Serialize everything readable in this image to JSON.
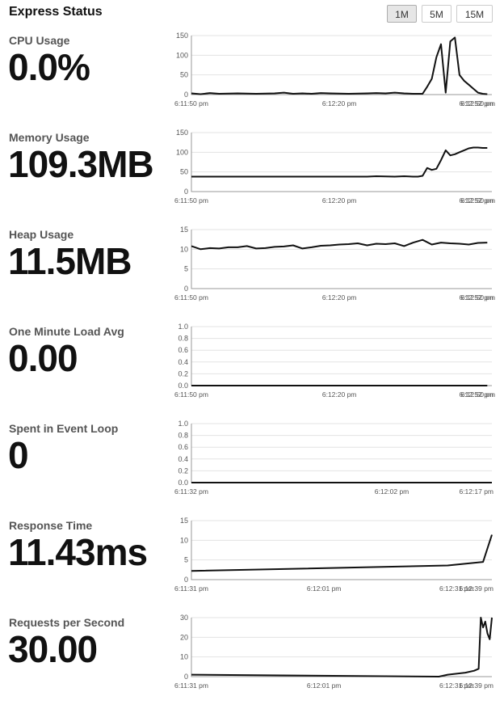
{
  "header": {
    "title": "Express Status",
    "buttons": [
      {
        "label": "1M",
        "active": true
      },
      {
        "label": "5M",
        "active": false
      },
      {
        "label": "15M",
        "active": false
      }
    ]
  },
  "colors": {
    "line": "#111111",
    "grid": "#e3e3e3",
    "axis": "#555555",
    "button_active": "#e6e6e6"
  },
  "chart_data": [
    {
      "type": "line",
      "label": "CPU Usage",
      "value_display": "0.0%",
      "ylim": [
        0,
        150
      ],
      "yticks": [
        0,
        50,
        100,
        150
      ],
      "grid": true,
      "xticks": [
        "6:11:50 pm",
        "6:12:20 pm",
        "6:12:50 pm",
        "6:12:52 pm"
      ],
      "xrange": [
        0,
        65
      ],
      "series": [
        {
          "x": [
            0,
            2,
            4,
            6,
            10,
            14,
            18,
            20,
            22,
            24,
            26,
            28,
            30,
            34,
            38,
            40,
            42,
            44,
            46,
            48,
            50,
            51,
            52,
            53,
            54,
            55,
            56,
            57,
            58,
            59,
            60,
            61,
            62,
            63,
            64
          ],
          "y": [
            3,
            1,
            4,
            2,
            3,
            2,
            3,
            5,
            2,
            3,
            2,
            4,
            3,
            2,
            3,
            4,
            3,
            5,
            3,
            2,
            2,
            20,
            40,
            95,
            128,
            5,
            135,
            145,
            50,
            35,
            25,
            15,
            5,
            2,
            1
          ]
        }
      ]
    },
    {
      "type": "line",
      "label": "Memory Usage",
      "value_display": "109.3MB",
      "ylim": [
        0,
        150
      ],
      "yticks": [
        0,
        50,
        100,
        150
      ],
      "grid": true,
      "xticks": [
        "6:11:50 pm",
        "6:12:20 pm",
        "6:12:50 pm",
        "6:12:52 pm"
      ],
      "xrange": [
        0,
        65
      ],
      "series": [
        {
          "x": [
            0,
            10,
            20,
            30,
            38,
            40,
            44,
            46,
            48,
            49,
            50,
            51,
            52,
            53,
            54,
            55,
            56,
            57,
            58,
            59,
            60,
            61,
            62,
            63,
            64
          ],
          "y": [
            38,
            38,
            38,
            38,
            38,
            39,
            38,
            39,
            38,
            38,
            40,
            60,
            55,
            58,
            80,
            105,
            92,
            95,
            100,
            105,
            110,
            112,
            112,
            111,
            111
          ]
        }
      ]
    },
    {
      "type": "line",
      "label": "Heap Usage",
      "value_display": "11.5MB",
      "ylim": [
        0,
        15
      ],
      "yticks": [
        0,
        5,
        10,
        15
      ],
      "grid": true,
      "xticks": [
        "6:11:50 pm",
        "6:12:20 pm",
        "6:12:50 pm",
        "6:12:52 pm"
      ],
      "xrange": [
        0,
        65
      ],
      "series": [
        {
          "x": [
            0,
            2,
            4,
            6,
            8,
            10,
            12,
            14,
            16,
            18,
            20,
            22,
            24,
            26,
            28,
            30,
            32,
            34,
            36,
            38,
            40,
            42,
            44,
            46,
            48,
            50,
            52,
            54,
            56,
            58,
            60,
            62,
            64
          ],
          "y": [
            10.8,
            10.0,
            10.3,
            10.2,
            10.5,
            10.5,
            10.8,
            10.2,
            10.3,
            10.6,
            10.7,
            11.0,
            10.2,
            10.5,
            10.9,
            11.0,
            11.2,
            11.3,
            11.5,
            11.0,
            11.4,
            11.3,
            11.5,
            10.8,
            11.7,
            12.4,
            11.2,
            11.7,
            11.5,
            11.4,
            11.2,
            11.6,
            11.7
          ]
        }
      ]
    },
    {
      "type": "line",
      "label": "One Minute Load Avg",
      "value_display": "0.00",
      "ylim": [
        0,
        1
      ],
      "yticks": [
        0,
        0.2,
        0.4,
        0.6,
        0.8,
        1.0
      ],
      "grid": true,
      "xticks": [
        "6:11:50 pm",
        "6:12:20 pm",
        "6:12:50 pm",
        "6:12:52 pm"
      ],
      "xrange": [
        0,
        65
      ],
      "series": [
        {
          "x": [
            0,
            64
          ],
          "y": [
            0,
            0
          ]
        }
      ]
    },
    {
      "type": "line",
      "label": "Spent in Event Loop",
      "value_display": "0",
      "ylim": [
        0,
        1
      ],
      "yticks": [
        0,
        0.2,
        0.4,
        0.6,
        0.8,
        1.0
      ],
      "grid": true,
      "xticks": [
        "6:11:32 pm",
        "6:12:02 pm",
        "6:12:17 pm"
      ],
      "xrange": [
        0,
        45
      ],
      "series": [
        {
          "x": [
            0,
            45
          ],
          "y": [
            0,
            0
          ]
        }
      ]
    },
    {
      "type": "line",
      "label": "Response Time",
      "value_display": "11.43ms",
      "ylim": [
        0,
        15
      ],
      "yticks": [
        0,
        5,
        10,
        15
      ],
      "grid": true,
      "xticks": [
        "6:11:31 pm",
        "6:12:01 pm",
        "6:12:31 pm",
        "6:12:39 pm"
      ],
      "xrange": [
        0,
        68
      ],
      "series": [
        {
          "x": [
            0,
            58,
            66,
            68
          ],
          "y": [
            2.2,
            3.6,
            4.5,
            11.4
          ]
        }
      ]
    },
    {
      "type": "line",
      "label": "Requests per Second",
      "value_display": "30.00",
      "ylim": [
        0,
        30
      ],
      "yticks": [
        0,
        10,
        20,
        30
      ],
      "grid": true,
      "xticks": [
        "6:11:31 pm",
        "6:12:01 pm",
        "6:12:31 pm",
        "6:12:39 pm"
      ],
      "xrange": [
        0,
        68
      ],
      "series": [
        {
          "x": [
            0,
            56,
            58,
            62,
            64,
            65,
            65.5,
            66,
            66.5,
            67,
            67.5,
            68
          ],
          "y": [
            1,
            0,
            1,
            2,
            3,
            4,
            31,
            25,
            28,
            22,
            19,
            30
          ]
        }
      ]
    }
  ]
}
